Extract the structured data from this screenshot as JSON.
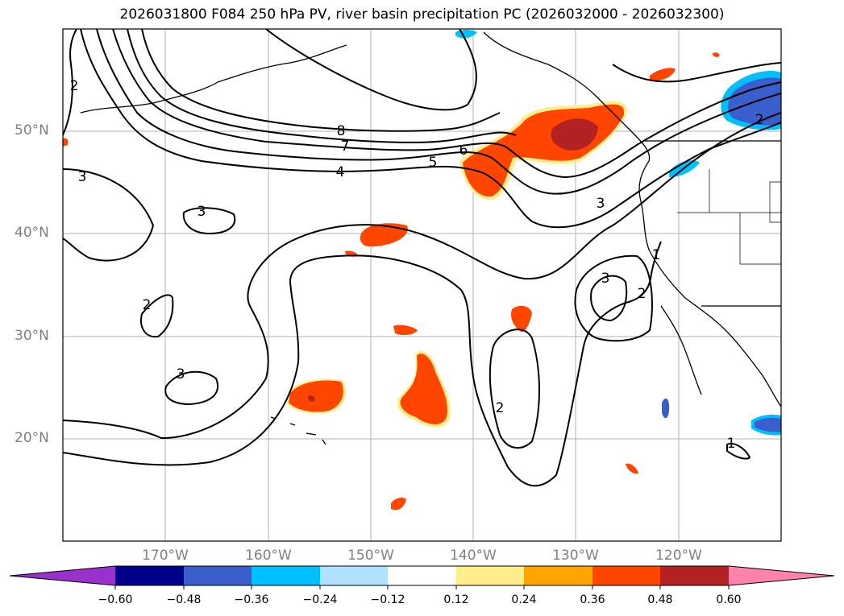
{
  "title": "2026031800 F084 250 hPa PV, river basin precipitation PC (2026032000 - 2026032300)",
  "lat_labels": [
    "50°N",
    "40°N",
    "30°N",
    "20°N"
  ],
  "lon_labels": [
    "170°W",
    "160°W",
    "150°W",
    "140°W",
    "130°W",
    "120°W"
  ],
  "contour_labels": [
    "8",
    "7",
    "6",
    "5",
    "4",
    "3",
    "3",
    "3",
    "3",
    "3",
    "2",
    "2",
    "2",
    "2",
    "2",
    "1",
    "1"
  ],
  "colorbar": {
    "ticks": [
      "−0.60",
      "−0.48",
      "−0.36",
      "−0.24",
      "−0.12",
      "0.12",
      "0.24",
      "0.36",
      "0.48",
      "0.60"
    ],
    "colors": [
      "#9932cc",
      "#00008b",
      "#3a5fcd",
      "#00bfff",
      "#b0e2ff",
      "#ffffff",
      "#ffec8b",
      "#ffa500",
      "#ff4500",
      "#b22222",
      "#ff82ab"
    ]
  },
  "colors": {
    "pos_low": "#ffec8b",
    "pos_mid": "#ffa500",
    "pos_high": "#ff4500",
    "pos_max": "#b22222",
    "neg_low": "#b0e2ff",
    "neg_mid": "#00bfff",
    "neg_high": "#3a5fcd",
    "grid": "#b0b0b0"
  }
}
